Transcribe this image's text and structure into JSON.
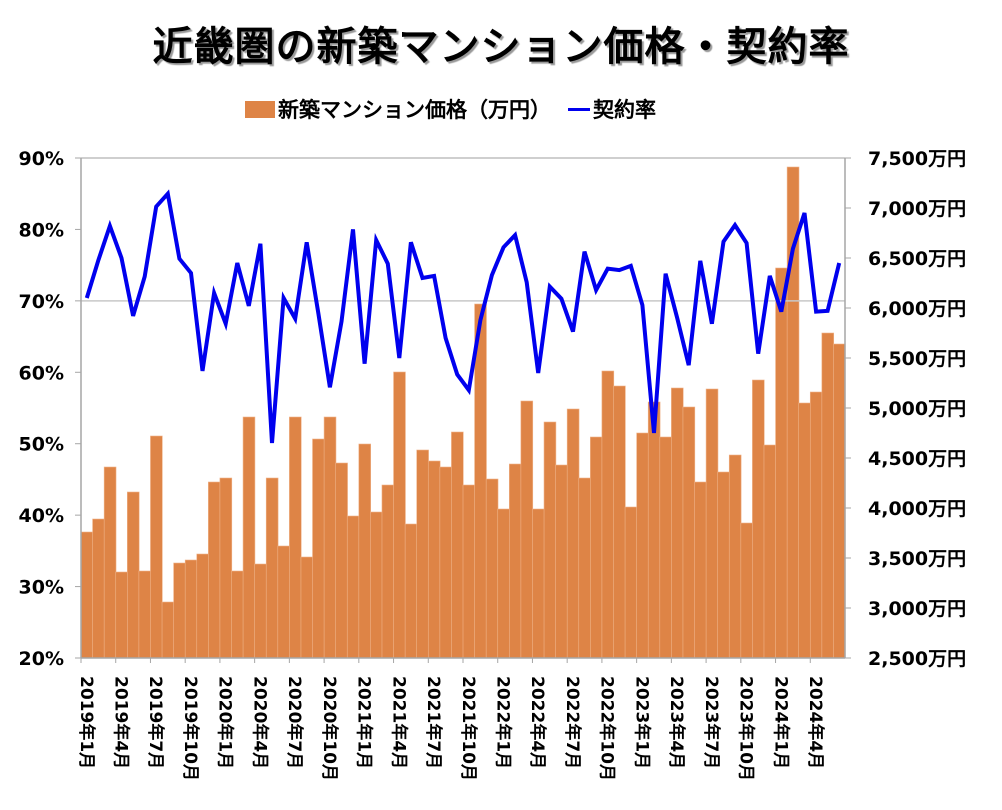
{
  "chart_data": {
    "type": "bar",
    "title": "近畿圏の新築マンション価格・契約率",
    "xlabel": "",
    "ylabel_left": "",
    "ylabel_right": "",
    "legend_position": "top-center",
    "grid": "horizontal line at 70% only",
    "left_axis": {
      "range": [
        20,
        90
      ],
      "unit": "%",
      "ticks": [
        "20%",
        "30%",
        "40%",
        "50%",
        "60%",
        "70%",
        "80%",
        "90%"
      ],
      "tick_values": [
        20,
        30,
        40,
        50,
        60,
        70,
        80,
        90
      ]
    },
    "right_axis": {
      "range": [
        2500,
        7500
      ],
      "unit": "万円",
      "ticks": [
        "2,500万円",
        "3,000万円",
        "3,500万円",
        "4,000万円",
        "4,500万円",
        "5,000万円",
        "5,500万円",
        "6,000万円",
        "6,500万円",
        "7,000万円",
        "7,500万円"
      ],
      "tick_values": [
        2500,
        3000,
        3500,
        4000,
        4500,
        5000,
        5500,
        6000,
        6500,
        7000,
        7500
      ]
    },
    "x_tick_labels": [
      "2019年1月",
      "2019年4月",
      "2019年7月",
      "2019年10月",
      "2020年1月",
      "2020年4月",
      "2020年7月",
      "2020年10月",
      "2021年1月",
      "2021年4月",
      "2021年7月",
      "2021年10月",
      "2022年1月",
      "2022年4月",
      "2022年7月",
      "2022年10月",
      "2023年1月",
      "2023年4月",
      "2023年7月",
      "2023年10月",
      "2024年1月",
      "2024年4月"
    ],
    "x_tick_every": 3,
    "start": {
      "year": 2019,
      "month": 1
    },
    "series": [
      {
        "name": "新築マンション価格（万円）",
        "type": "bar",
        "axis": "right",
        "color": "#DE8446",
        "values": [
          3760,
          3890,
          4410,
          3360,
          4160,
          3370,
          4720,
          3060,
          3450,
          3480,
          3540,
          4260,
          4300,
          3370,
          4910,
          3440,
          4300,
          3620,
          4910,
          3510,
          4690,
          4910,
          4450,
          3920,
          4640,
          3960,
          4230,
          5360,
          3840,
          4580,
          4470,
          4410,
          4760,
          4230,
          6040,
          4290,
          3990,
          4440,
          5070,
          3990,
          4860,
          4430,
          4990,
          4300,
          4710,
          5370,
          5220,
          4010,
          4750,
          5060,
          4710,
          5200,
          5010,
          4260,
          5190,
          4360,
          4530,
          3850,
          5280,
          4630,
          6400,
          7410,
          5050,
          5160,
          5750,
          5640
        ]
      },
      {
        "name": "契約率",
        "type": "line",
        "axis": "left",
        "color": "#0000EE",
        "values": [
          70.4,
          75.7,
          80.5,
          76.0,
          67.9,
          73.4,
          83.2,
          85.0,
          75.9,
          73.9,
          60.2,
          71.1,
          66.8,
          75.3,
          69.3,
          78.0,
          50.1,
          70.4,
          67.5,
          78.2,
          68.3,
          57.9,
          67.1,
          80.0,
          61.2,
          78.5,
          75.2,
          62.0,
          78.2,
          73.2,
          73.5,
          64.8,
          59.7,
          57.5,
          67.3,
          73.6,
          77.5,
          79.2,
          72.6,
          59.9,
          72.0,
          70.3,
          65.7,
          76.9,
          71.5,
          74.5,
          74.3,
          74.9,
          69.4,
          51.5,
          73.8,
          67.6,
          61.0,
          75.6,
          66.8,
          78.3,
          80.6,
          78.1,
          62.6,
          73.5,
          68.5,
          77.3,
          82.3,
          68.5,
          68.6,
          75.3
        ]
      }
    ]
  },
  "legend": {
    "bar_label": "新築マンション価格（万円）",
    "line_label": "契約率"
  }
}
